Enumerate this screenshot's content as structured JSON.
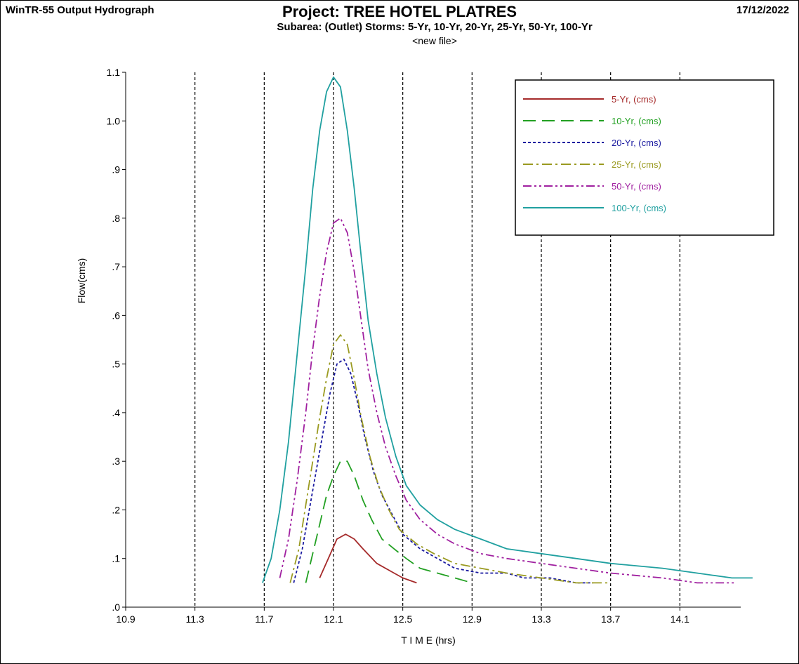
{
  "header": {
    "app_title": "WinTR-55 Output Hydrograph",
    "project_title": "Project: TREE HOTEL PLATRES",
    "date": "17/12/2022",
    "subtitle": "Subarea: (Outlet)  Storms: 5-Yr, 10-Yr, 20-Yr, 25-Yr, 50-Yr, 100-Yr",
    "file": "<new file>"
  },
  "chart_data": {
    "type": "line",
    "title": "Project: TREE HOTEL PLATRES",
    "xlabel": "T I M E (hrs)",
    "ylabel": "Flow(cms)",
    "xlim": [
      10.9,
      14.5
    ],
    "ylim": [
      0,
      1.1
    ],
    "x_ticks": [
      "10.9",
      "11.3",
      "11.7",
      "12.1",
      "12.5",
      "12.9",
      "13.3",
      "13.7",
      "14.1"
    ],
    "y_ticks": [
      ".0",
      ".1",
      ".2",
      ".3",
      ".4",
      ".5",
      ".6",
      ".7",
      ".8",
      ".9",
      "1.0",
      "1.1"
    ],
    "x_gridlines": [
      11.3,
      11.7,
      12.1,
      12.5,
      12.9,
      13.3,
      13.7,
      14.1
    ],
    "grid": "vertical dashed",
    "legend_position": "top-right",
    "series": [
      {
        "name": "5-Yr, (cms)",
        "color": "#a52a2a",
        "dash": "solid",
        "points": [
          [
            12.02,
            0.06
          ],
          [
            12.07,
            0.1
          ],
          [
            12.12,
            0.14
          ],
          [
            12.17,
            0.15
          ],
          [
            12.22,
            0.14
          ],
          [
            12.27,
            0.12
          ],
          [
            12.35,
            0.09
          ],
          [
            12.45,
            0.07
          ],
          [
            12.5,
            0.06
          ],
          [
            12.58,
            0.05
          ]
        ]
      },
      {
        "name": "10-Yr, (cms)",
        "color": "#22a022",
        "dash": "long",
        "points": [
          [
            11.94,
            0.05
          ],
          [
            11.98,
            0.11
          ],
          [
            12.02,
            0.17
          ],
          [
            12.06,
            0.23
          ],
          [
            12.1,
            0.27
          ],
          [
            12.14,
            0.3
          ],
          [
            12.18,
            0.3
          ],
          [
            12.22,
            0.27
          ],
          [
            12.27,
            0.22
          ],
          [
            12.32,
            0.18
          ],
          [
            12.38,
            0.14
          ],
          [
            12.45,
            0.12
          ],
          [
            12.52,
            0.1
          ],
          [
            12.6,
            0.08
          ],
          [
            12.7,
            0.07
          ],
          [
            12.8,
            0.06
          ],
          [
            12.9,
            0.05
          ]
        ]
      },
      {
        "name": "20-Yr, (cms)",
        "color": "#1a1aa0",
        "dash": "dotted",
        "points": [
          [
            11.87,
            0.05
          ],
          [
            11.92,
            0.12
          ],
          [
            11.96,
            0.2
          ],
          [
            12.0,
            0.28
          ],
          [
            12.04,
            0.36
          ],
          [
            12.08,
            0.44
          ],
          [
            12.12,
            0.5
          ],
          [
            12.16,
            0.51
          ],
          [
            12.2,
            0.48
          ],
          [
            12.24,
            0.42
          ],
          [
            12.28,
            0.35
          ],
          [
            12.33,
            0.28
          ],
          [
            12.38,
            0.23
          ],
          [
            12.44,
            0.19
          ],
          [
            12.5,
            0.15
          ],
          [
            12.6,
            0.12
          ],
          [
            12.7,
            0.1
          ],
          [
            12.8,
            0.08
          ],
          [
            12.95,
            0.07
          ],
          [
            13.1,
            0.07
          ],
          [
            13.2,
            0.06
          ],
          [
            13.35,
            0.06
          ],
          [
            13.5,
            0.05
          ],
          [
            13.6,
            0.05
          ]
        ]
      },
      {
        "name": "25-Yr, (cms)",
        "color": "#9a9a20",
        "dash": "dashdot",
        "points": [
          [
            11.85,
            0.05
          ],
          [
            11.9,
            0.12
          ],
          [
            11.94,
            0.21
          ],
          [
            11.98,
            0.3
          ],
          [
            12.02,
            0.39
          ],
          [
            12.06,
            0.47
          ],
          [
            12.1,
            0.54
          ],
          [
            12.14,
            0.56
          ],
          [
            12.18,
            0.54
          ],
          [
            12.22,
            0.47
          ],
          [
            12.26,
            0.39
          ],
          [
            12.31,
            0.31
          ],
          [
            12.36,
            0.25
          ],
          [
            12.42,
            0.2
          ],
          [
            12.48,
            0.16
          ],
          [
            12.58,
            0.13
          ],
          [
            12.68,
            0.11
          ],
          [
            12.8,
            0.09
          ],
          [
            12.95,
            0.08
          ],
          [
            13.1,
            0.07
          ],
          [
            13.3,
            0.06
          ],
          [
            13.5,
            0.05
          ],
          [
            13.7,
            0.05
          ]
        ]
      },
      {
        "name": "50-Yr, (cms)",
        "color": "#a020a0",
        "dash": "dashdotdot",
        "points": [
          [
            11.79,
            0.06
          ],
          [
            11.84,
            0.14
          ],
          [
            11.89,
            0.26
          ],
          [
            11.94,
            0.4
          ],
          [
            11.98,
            0.53
          ],
          [
            12.02,
            0.64
          ],
          [
            12.06,
            0.73
          ],
          [
            12.1,
            0.79
          ],
          [
            12.14,
            0.8
          ],
          [
            12.18,
            0.77
          ],
          [
            12.22,
            0.69
          ],
          [
            12.26,
            0.59
          ],
          [
            12.3,
            0.49
          ],
          [
            12.35,
            0.4
          ],
          [
            12.4,
            0.33
          ],
          [
            12.46,
            0.27
          ],
          [
            12.52,
            0.22
          ],
          [
            12.6,
            0.18
          ],
          [
            12.7,
            0.15
          ],
          [
            12.8,
            0.13
          ],
          [
            12.95,
            0.11
          ],
          [
            13.1,
            0.1
          ],
          [
            13.3,
            0.09
          ],
          [
            13.5,
            0.08
          ],
          [
            13.7,
            0.07
          ],
          [
            14.0,
            0.06
          ],
          [
            14.2,
            0.05
          ],
          [
            14.42,
            0.05
          ]
        ]
      },
      {
        "name": "100-Yr, (cms)",
        "color": "#20a0a0",
        "dash": "solid",
        "points": [
          [
            11.69,
            0.05
          ],
          [
            11.74,
            0.1
          ],
          [
            11.79,
            0.2
          ],
          [
            11.84,
            0.34
          ],
          [
            11.89,
            0.52
          ],
          [
            11.94,
            0.7
          ],
          [
            11.98,
            0.86
          ],
          [
            12.02,
            0.98
          ],
          [
            12.06,
            1.06
          ],
          [
            12.1,
            1.09
          ],
          [
            12.14,
            1.07
          ],
          [
            12.18,
            0.98
          ],
          [
            12.22,
            0.86
          ],
          [
            12.26,
            0.72
          ],
          [
            12.3,
            0.59
          ],
          [
            12.35,
            0.48
          ],
          [
            12.4,
            0.39
          ],
          [
            12.46,
            0.31
          ],
          [
            12.52,
            0.25
          ],
          [
            12.6,
            0.21
          ],
          [
            12.7,
            0.18
          ],
          [
            12.8,
            0.16
          ],
          [
            12.95,
            0.14
          ],
          [
            13.1,
            0.12
          ],
          [
            13.3,
            0.11
          ],
          [
            13.5,
            0.1
          ],
          [
            13.7,
            0.09
          ],
          [
            14.0,
            0.08
          ],
          [
            14.2,
            0.07
          ],
          [
            14.4,
            0.06
          ],
          [
            14.52,
            0.06
          ]
        ]
      }
    ]
  }
}
